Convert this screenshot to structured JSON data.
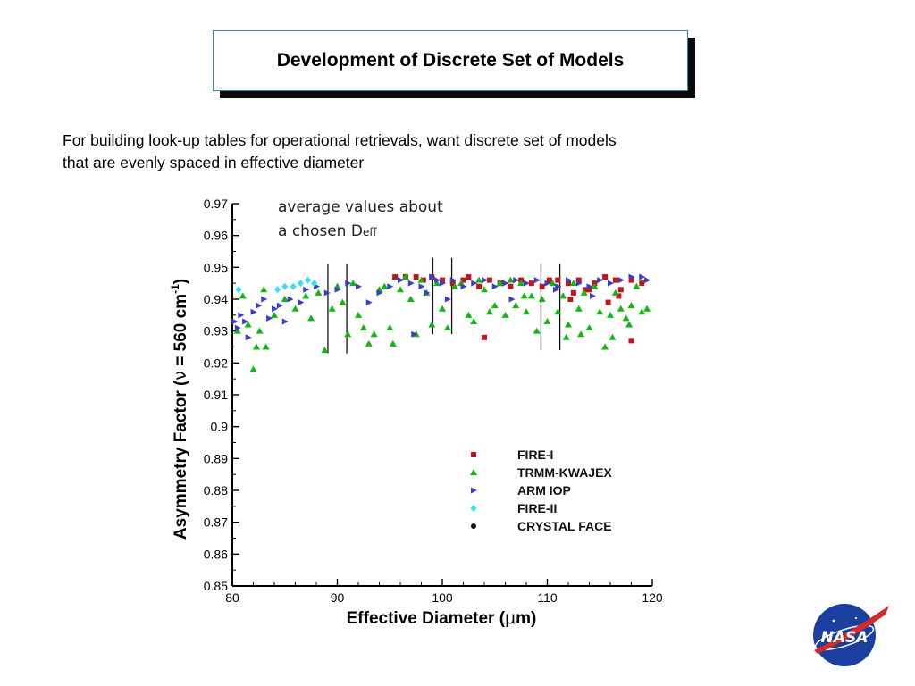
{
  "slide": {
    "title": "Development of Discrete Set of Models",
    "intro_lines": [
      "For building look-up tables for operational retrievals, want discrete set of models",
      "that are evenly spaced in effective diameter"
    ],
    "logo": {
      "icon": "nasa-meatball-logo",
      "text": "NASA"
    }
  },
  "chart_data": {
    "type": "scatter",
    "annotation": {
      "line1": "average values about",
      "line2_main": "a chosen D",
      "line2_sub": "eff"
    },
    "xlabel": {
      "main": "Effective Diameter (",
      "symbol": "μ",
      "tail": "m)"
    },
    "ylabel": {
      "main": "Asymmetry Factor (",
      "symbol": "ν",
      "mid": " = 560 cm",
      "sup": "-1",
      "tail": ")"
    },
    "xlim": [
      80,
      120
    ],
    "ylim": [
      0.85,
      0.97
    ],
    "xticks": [
      "80",
      "90",
      "100",
      "110",
      "120"
    ],
    "yticks": [
      "0.85",
      "0.86",
      "0.87",
      "0.88",
      "0.89",
      "0.9",
      "0.91",
      "0.92",
      "0.93",
      "0.94",
      "0.95",
      "0.96",
      "0.97"
    ],
    "legend_position": "lower-right",
    "grid": false,
    "averaging_bins": [
      {
        "x0": 89.1,
        "x1": 90.9,
        "y0": 0.923,
        "y1": 0.951
      },
      {
        "x0": 99.1,
        "x1": 100.9,
        "y0": 0.929,
        "y1": 0.953
      },
      {
        "x0": 109.4,
        "x1": 111.2,
        "y0": 0.924,
        "y1": 0.951
      }
    ],
    "series": [
      {
        "name": "FIRE-I",
        "marker": "square",
        "color": "#c0161b",
        "points": [
          [
            95.5,
            0.947
          ],
          [
            96.5,
            0.947
          ],
          [
            97.5,
            0.947
          ],
          [
            98.2,
            0.946
          ],
          [
            99,
            0.947
          ],
          [
            100,
            0.946
          ],
          [
            101,
            0.945
          ],
          [
            102,
            0.946
          ],
          [
            102.5,
            0.947
          ],
          [
            103.5,
            0.944
          ],
          [
            104.5,
            0.946
          ],
          [
            105.5,
            0.945
          ],
          [
            106.5,
            0.944
          ],
          [
            107.5,
            0.946
          ],
          [
            108.5,
            0.945
          ],
          [
            109.5,
            0.944
          ],
          [
            110.2,
            0.946
          ],
          [
            111,
            0.946
          ],
          [
            112,
            0.945
          ],
          [
            112.5,
            0.942
          ],
          [
            113,
            0.946
          ],
          [
            113.6,
            0.943
          ],
          [
            114.5,
            0.945
          ],
          [
            115.5,
            0.947
          ],
          [
            116.5,
            0.946
          ],
          [
            117,
            0.943
          ],
          [
            118,
            0.946
          ],
          [
            119,
            0.945
          ],
          [
            118,
            0.927
          ],
          [
            104,
            0.928
          ],
          [
            112.2,
            0.94
          ],
          [
            115.8,
            0.939
          ],
          [
            114,
            0.943
          ],
          [
            116.8,
            0.941
          ]
        ]
      },
      {
        "name": "TRMM-KWAJEX",
        "marker": "triangle",
        "color": "#13b513",
        "points": [
          [
            80.5,
            0.93
          ],
          [
            81,
            0.941
          ],
          [
            81.5,
            0.932
          ],
          [
            82,
            0.918
          ],
          [
            82.3,
            0.925
          ],
          [
            82.6,
            0.93
          ],
          [
            83,
            0.943
          ],
          [
            83.2,
            0.925
          ],
          [
            84,
            0.935
          ],
          [
            85,
            0.94
          ],
          [
            86,
            0.937
          ],
          [
            87,
            0.941
          ],
          [
            87.5,
            0.934
          ],
          [
            88.2,
            0.942
          ],
          [
            88.8,
            0.924
          ],
          [
            89.5,
            0.937
          ],
          [
            90,
            0.944
          ],
          [
            90.5,
            0.939
          ],
          [
            91,
            0.929
          ],
          [
            91.5,
            0.945
          ],
          [
            92,
            0.935
          ],
          [
            92.5,
            0.931
          ],
          [
            93,
            0.926
          ],
          [
            93.5,
            0.929
          ],
          [
            94,
            0.943
          ],
          [
            94.5,
            0.944
          ],
          [
            95,
            0.931
          ],
          [
            95.3,
            0.926
          ],
          [
            96,
            0.943
          ],
          [
            96.5,
            0.947
          ],
          [
            97,
            0.94
          ],
          [
            97.5,
            0.929
          ],
          [
            98,
            0.946
          ],
          [
            98.5,
            0.942
          ],
          [
            99,
            0.932
          ],
          [
            99.5,
            0.945
          ],
          [
            100,
            0.937
          ],
          [
            100.5,
            0.931
          ],
          [
            101.2,
            0.944
          ],
          [
            101.8,
            0.945
          ],
          [
            102.5,
            0.935
          ],
          [
            103,
            0.933
          ],
          [
            103.5,
            0.946
          ],
          [
            104,
            0.943
          ],
          [
            104.5,
            0.936
          ],
          [
            105,
            0.938
          ],
          [
            105.5,
            0.945
          ],
          [
            106,
            0.935
          ],
          [
            106.5,
            0.946
          ],
          [
            107,
            0.938
          ],
          [
            107.5,
            0.945
          ],
          [
            108,
            0.936
          ],
          [
            108.5,
            0.941
          ],
          [
            109,
            0.93
          ],
          [
            109.5,
            0.94
          ],
          [
            110,
            0.933
          ],
          [
            110.5,
            0.945
          ],
          [
            111,
            0.936
          ],
          [
            111.5,
            0.941
          ],
          [
            112,
            0.932
          ],
          [
            112.5,
            0.945
          ],
          [
            113,
            0.937
          ],
          [
            113.5,
            0.942
          ],
          [
            114,
            0.931
          ],
          [
            114.5,
            0.944
          ],
          [
            115,
            0.936
          ],
          [
            115.5,
            0.925
          ],
          [
            116,
            0.935
          ],
          [
            116.5,
            0.942
          ],
          [
            117,
            0.937
          ],
          [
            117.5,
            0.934
          ],
          [
            118,
            0.938
          ],
          [
            118.5,
            0.944
          ],
          [
            119,
            0.936
          ],
          [
            119.5,
            0.937
          ],
          [
            117.8,
            0.932
          ],
          [
            116.2,
            0.928
          ],
          [
            107.8,
            0.941
          ],
          [
            111.8,
            0.928
          ],
          [
            113.2,
            0.929
          ]
        ]
      },
      {
        "name": "ARM IOP",
        "marker": "triangle-right",
        "color": "#3c3cc8",
        "points": [
          [
            80.2,
            0.933
          ],
          [
            80.5,
            0.931
          ],
          [
            80.8,
            0.935
          ],
          [
            81.2,
            0.933
          ],
          [
            81.5,
            0.928
          ],
          [
            82,
            0.936
          ],
          [
            82.5,
            0.938
          ],
          [
            83,
            0.94
          ],
          [
            83.5,
            0.934
          ],
          [
            84,
            0.937
          ],
          [
            84.5,
            0.938
          ],
          [
            85,
            0.933
          ],
          [
            85.5,
            0.94
          ],
          [
            86.5,
            0.939
          ],
          [
            87,
            0.943
          ],
          [
            88,
            0.944
          ],
          [
            89,
            0.942
          ],
          [
            90,
            0.943
          ],
          [
            91,
            0.945
          ],
          [
            92,
            0.944
          ],
          [
            93,
            0.939
          ],
          [
            94,
            0.942
          ],
          [
            95,
            0.944
          ],
          [
            96,
            0.946
          ],
          [
            97,
            0.945
          ],
          [
            98,
            0.944
          ],
          [
            98.5,
            0.942
          ],
          [
            99,
            0.947
          ],
          [
            99.5,
            0.946
          ],
          [
            100,
            0.945
          ],
          [
            101,
            0.946
          ],
          [
            102,
            0.944
          ],
          [
            103,
            0.945
          ],
          [
            104,
            0.946
          ],
          [
            105,
            0.944
          ],
          [
            106,
            0.945
          ],
          [
            107,
            0.946
          ],
          [
            108,
            0.945
          ],
          [
            109,
            0.946
          ],
          [
            110,
            0.945
          ],
          [
            111,
            0.944
          ],
          [
            112,
            0.946
          ],
          [
            113,
            0.945
          ],
          [
            114,
            0.944
          ],
          [
            115,
            0.946
          ],
          [
            116,
            0.945
          ],
          [
            117,
            0.946
          ],
          [
            118,
            0.947
          ],
          [
            119,
            0.947
          ],
          [
            119.5,
            0.946
          ],
          [
            97.3,
            0.929
          ],
          [
            100.5,
            0.94
          ],
          [
            106.6,
            0.94
          ],
          [
            110.8,
            0.943
          ],
          [
            114.3,
            0.941
          ]
        ]
      },
      {
        "name": "FIRE-II",
        "marker": "diamond",
        "color": "#34e0f5",
        "points": [
          [
            80.6,
            0.943
          ],
          [
            84.3,
            0.943
          ],
          [
            85,
            0.944
          ],
          [
            85.8,
            0.944
          ],
          [
            86.5,
            0.945
          ],
          [
            87.2,
            0.946
          ],
          [
            87.8,
            0.945
          ]
        ]
      },
      {
        "name": "CRYSTAL FACE",
        "marker": "circle",
        "color": "#111111",
        "points": []
      }
    ]
  }
}
